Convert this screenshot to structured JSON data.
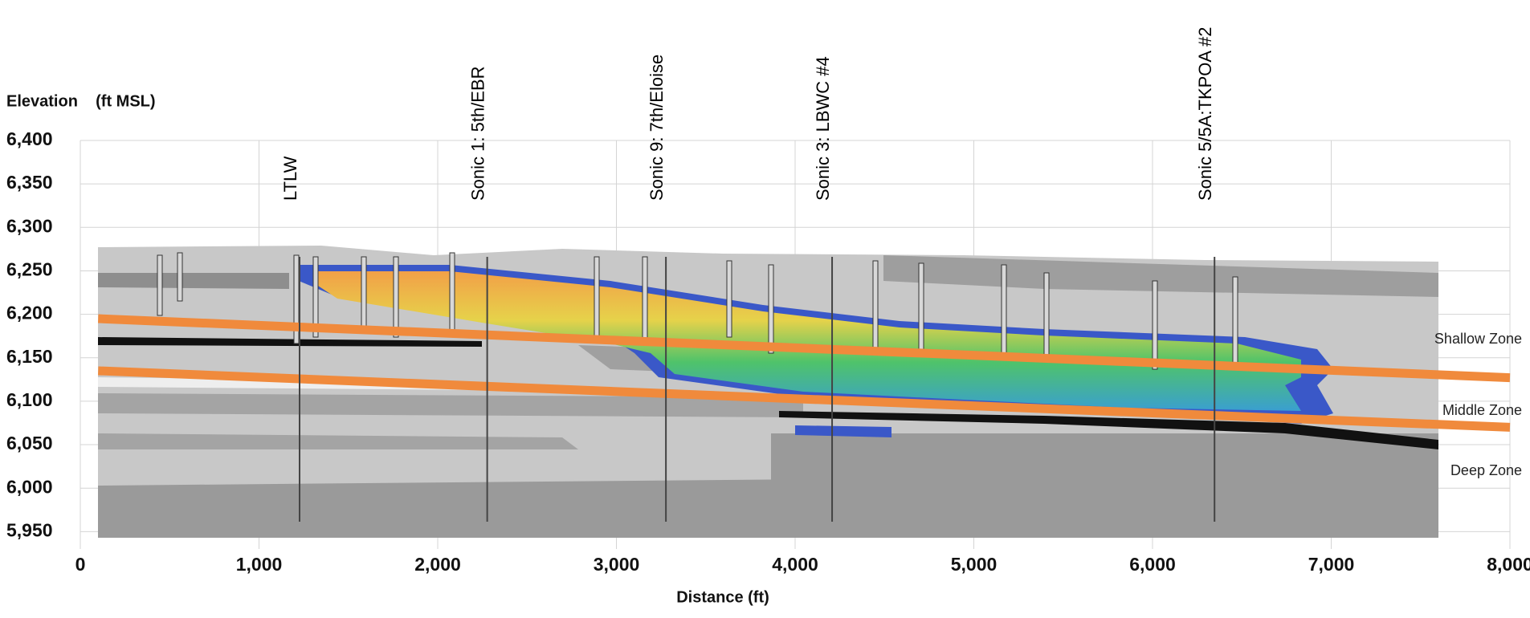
{
  "chart_data": {
    "type": "cross-section",
    "x_label": "Distance (ft)",
    "y_label": "Elevation    (ft MSL)",
    "xlim": [
      0,
      8000
    ],
    "ylim": [
      5930,
      6400
    ],
    "xticks": [
      0,
      {
        "value": 1000,
        "label": "1,000"
      },
      {
        "value": 2000,
        "label": "2,000"
      },
      {
        "value": 3000,
        "label": "3,000"
      },
      {
        "value": 4000,
        "label": "4,000"
      },
      {
        "value": 5000,
        "label": "5,000"
      },
      {
        "value": 6000,
        "label": "6,000"
      },
      {
        "value": 7000,
        "label": "7,000"
      },
      {
        "value": 8000,
        "label": "8,000"
      }
    ],
    "yticks": [
      {
        "value": 5950,
        "label": "5,950"
      },
      {
        "value": 6000,
        "label": "6,000"
      },
      {
        "value": 6050,
        "label": "6,050"
      },
      {
        "value": 6100,
        "label": "6,100"
      },
      {
        "value": 6150,
        "label": "6,150"
      },
      {
        "value": 6200,
        "label": "6,200"
      },
      {
        "value": 6250,
        "label": "6,250"
      },
      {
        "value": 6300,
        "label": "6,300"
      },
      {
        "value": 6350,
        "label": "6,350"
      },
      {
        "value": 6400,
        "label": "6,400"
      }
    ],
    "grid": true,
    "borings": [
      {
        "label": "LTLW",
        "x": 1200
      },
      {
        "label": "Sonic 1: 5th/EBR",
        "x": 2250
      },
      {
        "label": "Sonic 9: 7th/Eloise",
        "x": 3250
      },
      {
        "label": "Sonic 3: LBWC #4",
        "x": 4180
      },
      {
        "label": "Sonic 5/5A:TKPOA #2",
        "x": 6320
      }
    ],
    "series": [
      {
        "color": "#f08a3c",
        "x": [
          100,
          8000
        ],
        "values": [
          6195,
          6127
        ]
      },
      {
        "color": "#f08a3c",
        "x": [
          100,
          8000
        ],
        "values": [
          6135,
          6070
        ]
      }
    ],
    "zones": [
      "Shallow Zone",
      "Middle Zone",
      "Deep Zone"
    ]
  }
}
